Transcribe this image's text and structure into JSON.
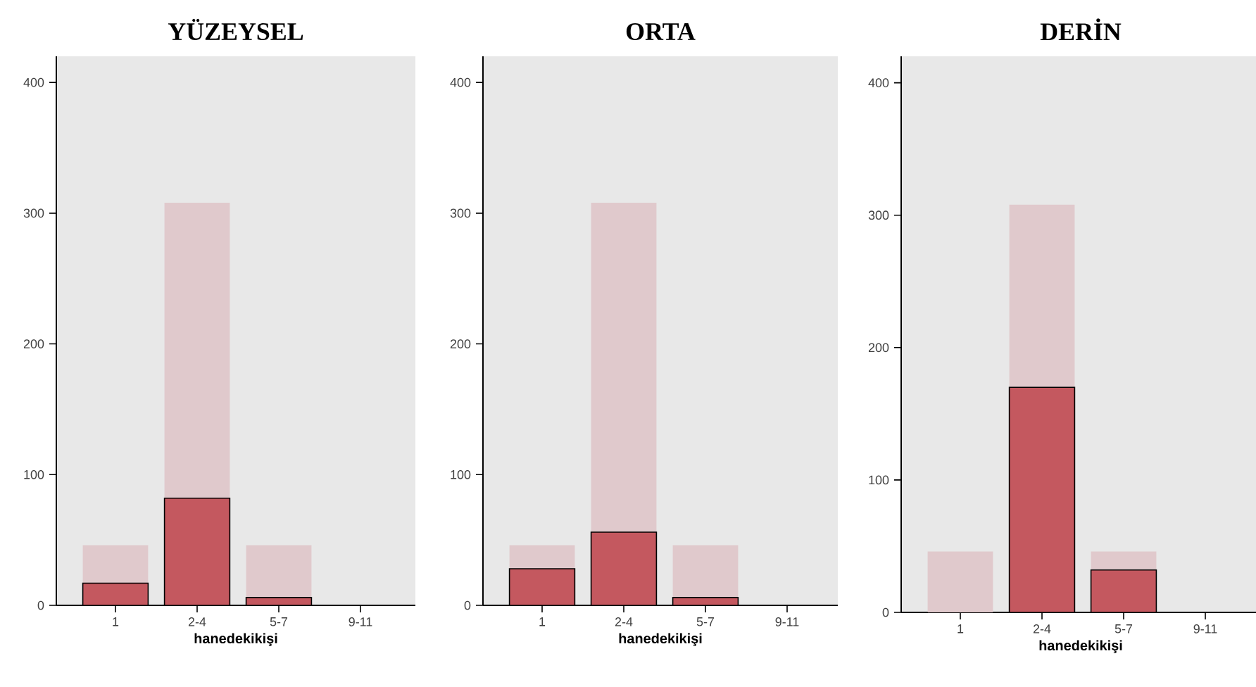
{
  "chart_data": [
    {
      "type": "bar",
      "stacked": true,
      "title": "YÜZEYSEL",
      "xlabel": "hanedekikişi",
      "categories": [
        "1",
        "2-4",
        "5-7",
        "9-11"
      ],
      "series": [
        {
          "color": "#c4585f",
          "values": [
            17,
            82,
            6,
            0
          ]
        },
        {
          "color": "#e0c9cc",
          "values": [
            29,
            226,
            40,
            0
          ]
        }
      ],
      "ylim": [
        0,
        420
      ],
      "yticks": [
        0,
        100,
        200,
        300,
        400
      ]
    },
    {
      "type": "bar",
      "stacked": true,
      "title": "ORTA",
      "xlabel": "hanedekikişi",
      "categories": [
        "1",
        "2-4",
        "5-7",
        "9-11"
      ],
      "series": [
        {
          "color": "#c4585f",
          "values": [
            28,
            56,
            6,
            0
          ]
        },
        {
          "color": "#e0c9cc",
          "values": [
            18,
            252,
            40,
            0
          ]
        }
      ],
      "ylim": [
        0,
        420
      ],
      "yticks": [
        0,
        100,
        200,
        300,
        400
      ]
    },
    {
      "type": "bar",
      "stacked": true,
      "title": "DERİN",
      "xlabel": "hanedekikişi",
      "categories": [
        "1",
        "2-4",
        "5-7",
        "9-11"
      ],
      "series": [
        {
          "color": "#c4585f",
          "values": [
            0,
            170,
            32,
            0
          ]
        },
        {
          "color": "#e0c9cc",
          "values": [
            46,
            138,
            14,
            0
          ]
        }
      ],
      "ylim": [
        0,
        420
      ],
      "yticks": [
        0,
        100,
        200,
        300,
        400
      ]
    }
  ]
}
